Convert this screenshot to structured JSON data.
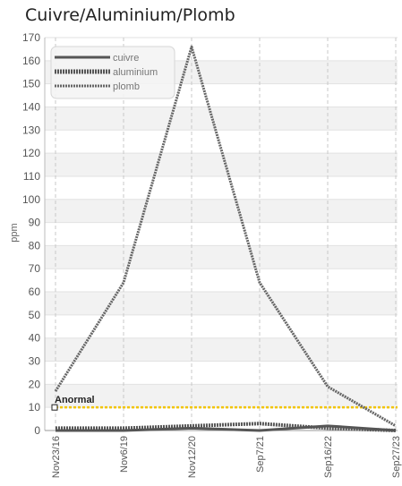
{
  "title": "Cuivre/Aluminium/Plomb",
  "chart_data": {
    "type": "line",
    "title": "Cuivre/Aluminium/Plomb",
    "xlabel": "",
    "ylabel": "ppm",
    "ylim": [
      0,
      170
    ],
    "yticks": [
      0,
      10,
      20,
      30,
      40,
      50,
      60,
      70,
      80,
      90,
      100,
      110,
      120,
      130,
      140,
      150,
      160,
      170
    ],
    "categories": [
      "Nov23/16",
      "Nov6/19",
      "Nov12/20",
      "Sep7/21",
      "Sep16/22",
      "Sep27/23"
    ],
    "series": [
      {
        "name": "cuivre",
        "values": [
          0,
          0,
          1,
          0,
          2,
          0
        ],
        "color": "#555555",
        "style": "solid"
      },
      {
        "name": "aluminium",
        "values": [
          1,
          1,
          2,
          3,
          1,
          0
        ],
        "color": "#555555",
        "style": "dotted"
      },
      {
        "name": "plomb",
        "values": [
          17,
          64,
          166,
          64,
          19,
          2
        ],
        "color": "#666666",
        "style": "dotted"
      }
    ],
    "threshold": {
      "label": "Anormal",
      "value": 10,
      "color": "#f2c500"
    },
    "legend_position": "top-left",
    "grid": true
  }
}
